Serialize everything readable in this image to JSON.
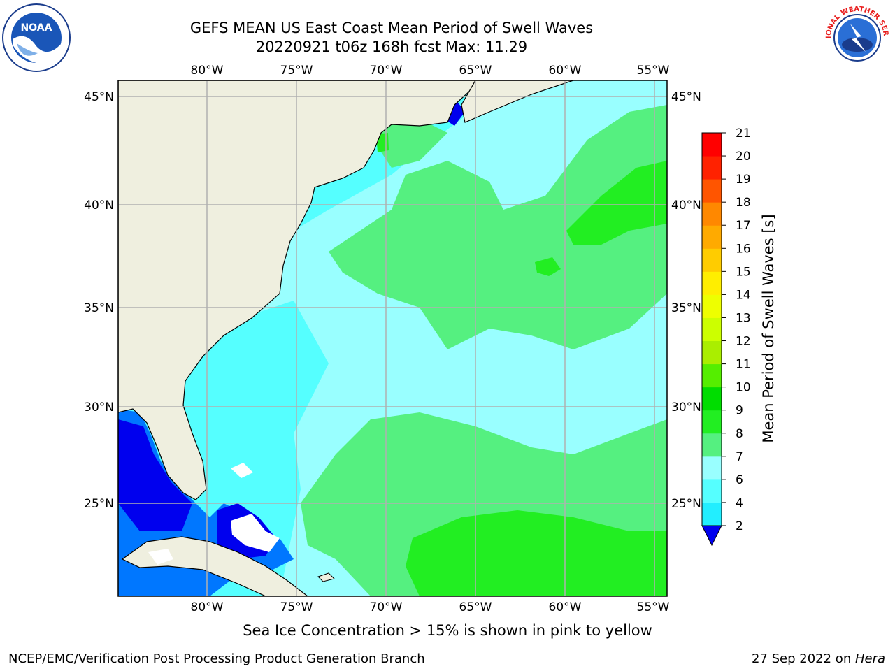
{
  "header": {
    "title_line1": "GEFS MEAN US East Coast Mean Period of Swell Waves",
    "title_line2": "20220921 t06z 168h fcst   Max: 11.29"
  },
  "logos": {
    "left": {
      "name": "noaa-logo",
      "text": "NOAA"
    },
    "right": {
      "name": "nws-logo",
      "text": "NATIONAL WEATHER SERVICE"
    }
  },
  "map": {
    "lon_ticks": [
      "80°W",
      "75°W",
      "70°W",
      "65°W",
      "60°W",
      "55°W"
    ],
    "lat_ticks": [
      "45°N",
      "40°N",
      "35°N",
      "30°N",
      "25°N"
    ],
    "land_color": "#efefdf",
    "gridline_color": "#b0b0b0"
  },
  "colorbar": {
    "label": "Mean Period of Swell Waves [s]",
    "ticks": [
      "2",
      "4",
      "6",
      "7",
      "8",
      "9",
      "10",
      "11",
      "12",
      "13",
      "14",
      "15",
      "16",
      "17",
      "18",
      "19",
      "20",
      "21"
    ],
    "colors": [
      "#0077ff",
      "#00c8ff",
      "#22eeff",
      "#55ffff",
      "#99ffff",
      "#55f080",
      "#22ee22",
      "#00dd00",
      "#55ee00",
      "#aaee00",
      "#ccff00",
      "#eeff00",
      "#ffee00",
      "#ffcc00",
      "#ffaa00",
      "#ff8800",
      "#ff5500",
      "#ff2200",
      "#ff0000"
    ],
    "under_color": "#0000ee"
  },
  "notes": {
    "sea_ice": "Sea Ice Concentration > 15% is shown in pink to yellow",
    "footer_left": "NCEP/EMC/Verification Post Processing Product Generation Branch",
    "footer_date": "27 Sep 2022 on ",
    "footer_host": "Hera"
  }
}
